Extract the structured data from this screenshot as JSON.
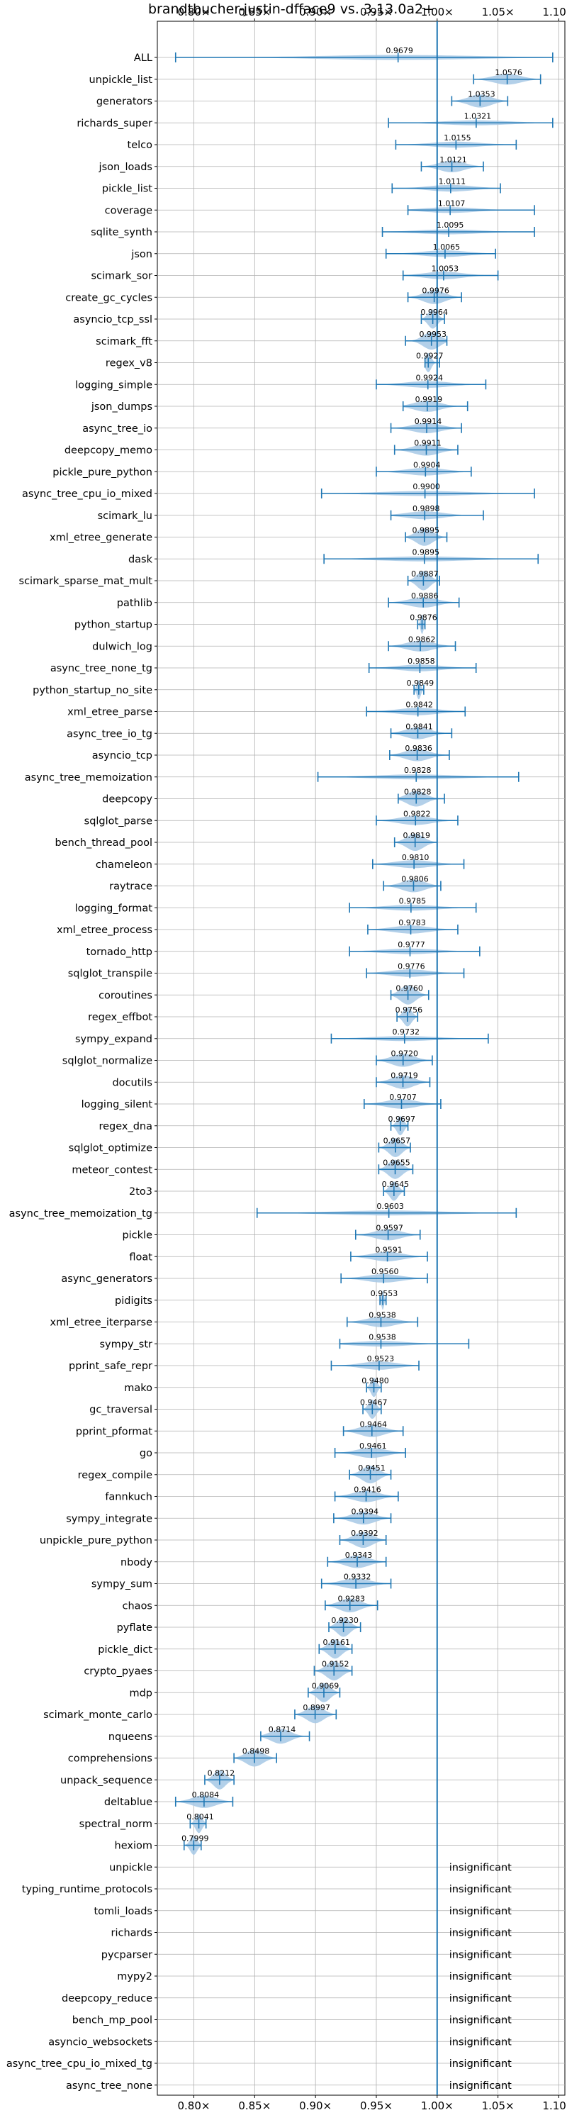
{
  "chart_data": {
    "type": "violin",
    "title": "brandtbucher-justin-dfface9 vs. 3.13.0a2+",
    "xlabel": "",
    "ylabel": "",
    "xlim": [
      0.77,
      1.105
    ],
    "xticks": [
      0.8,
      0.85,
      0.9,
      0.95,
      1.0,
      1.05,
      1.1
    ],
    "xtick_labels": [
      "0.80×",
      "0.85×",
      "0.90×",
      "0.95×",
      "1.00×",
      "1.05×",
      "1.10×"
    ],
    "reference_line": 1.0,
    "grid": true,
    "color": "#1f77b4",
    "violin_color": "#a6c8e5",
    "insignificant_label": "insignificant",
    "benchmarks": [
      {
        "name": "ALL",
        "value": 0.9679,
        "min": 0.785,
        "max": 1.095
      },
      {
        "name": "unpickle_list",
        "value": 1.0576,
        "min": 1.03,
        "max": 1.085
      },
      {
        "name": "generators",
        "value": 1.0353,
        "min": 1.012,
        "max": 1.058
      },
      {
        "name": "richards_super",
        "value": 1.0321,
        "min": 0.96,
        "max": 1.095
      },
      {
        "name": "telco",
        "value": 1.0155,
        "min": 0.966,
        "max": 1.065
      },
      {
        "name": "json_loads",
        "value": 1.0121,
        "min": 0.987,
        "max": 1.038
      },
      {
        "name": "pickle_list",
        "value": 1.0111,
        "min": 0.963,
        "max": 1.052
      },
      {
        "name": "coverage",
        "value": 1.0107,
        "min": 0.976,
        "max": 1.08
      },
      {
        "name": "sqlite_synth",
        "value": 1.0095,
        "min": 0.955,
        "max": 1.08
      },
      {
        "name": "json",
        "value": 1.0065,
        "min": 0.958,
        "max": 1.048
      },
      {
        "name": "scimark_sor",
        "value": 1.0053,
        "min": 0.972,
        "max": 1.05
      },
      {
        "name": "create_gc_cycles",
        "value": 0.9976,
        "min": 0.976,
        "max": 1.02
      },
      {
        "name": "asyncio_tcp_ssl",
        "value": 0.9964,
        "min": 0.987,
        "max": 1.006
      },
      {
        "name": "scimark_fft",
        "value": 0.9953,
        "min": 0.974,
        "max": 1.008
      },
      {
        "name": "regex_v8",
        "value": 0.9927,
        "min": 0.99,
        "max": 1.002
      },
      {
        "name": "logging_simple",
        "value": 0.9924,
        "min": 0.95,
        "max": 1.04
      },
      {
        "name": "json_dumps",
        "value": 0.9919,
        "min": 0.972,
        "max": 1.025
      },
      {
        "name": "async_tree_io",
        "value": 0.9914,
        "min": 0.962,
        "max": 1.02
      },
      {
        "name": "deepcopy_memo",
        "value": 0.9911,
        "min": 0.965,
        "max": 1.017
      },
      {
        "name": "pickle_pure_python",
        "value": 0.9904,
        "min": 0.95,
        "max": 1.028
      },
      {
        "name": "async_tree_cpu_io_mixed",
        "value": 0.99,
        "min": 0.905,
        "max": 1.08
      },
      {
        "name": "scimark_lu",
        "value": 0.9898,
        "min": 0.962,
        "max": 1.038
      },
      {
        "name": "xml_etree_generate",
        "value": 0.9895,
        "min": 0.974,
        "max": 1.008
      },
      {
        "name": "dask",
        "value": 0.9895,
        "min": 0.907,
        "max": 1.083
      },
      {
        "name": "scimark_sparse_mat_mult",
        "value": 0.9887,
        "min": 0.976,
        "max": 1.002
      },
      {
        "name": "pathlib",
        "value": 0.9886,
        "min": 0.96,
        "max": 1.018
      },
      {
        "name": "python_startup",
        "value": 0.9876,
        "min": 0.984,
        "max": 0.99
      },
      {
        "name": "dulwich_log",
        "value": 0.9862,
        "min": 0.96,
        "max": 1.015
      },
      {
        "name": "async_tree_none_tg",
        "value": 0.9858,
        "min": 0.944,
        "max": 1.032
      },
      {
        "name": "python_startup_no_site",
        "value": 0.9849,
        "min": 0.981,
        "max": 0.989
      },
      {
        "name": "xml_etree_parse",
        "value": 0.9842,
        "min": 0.942,
        "max": 1.023
      },
      {
        "name": "async_tree_io_tg",
        "value": 0.9841,
        "min": 0.962,
        "max": 1.012
      },
      {
        "name": "asyncio_tcp",
        "value": 0.9836,
        "min": 0.961,
        "max": 1.01
      },
      {
        "name": "async_tree_memoization",
        "value": 0.9828,
        "min": 0.902,
        "max": 1.067
      },
      {
        "name": "deepcopy",
        "value": 0.9828,
        "min": 0.968,
        "max": 1.006
      },
      {
        "name": "sqlglot_parse",
        "value": 0.9822,
        "min": 0.95,
        "max": 1.017
      },
      {
        "name": "bench_thread_pool",
        "value": 0.9819,
        "min": 0.965,
        "max": 1.0
      },
      {
        "name": "chameleon",
        "value": 0.981,
        "min": 0.947,
        "max": 1.022
      },
      {
        "name": "raytrace",
        "value": 0.9806,
        "min": 0.956,
        "max": 1.003
      },
      {
        "name": "logging_format",
        "value": 0.9785,
        "min": 0.928,
        "max": 1.032
      },
      {
        "name": "xml_etree_process",
        "value": 0.9783,
        "min": 0.943,
        "max": 1.017
      },
      {
        "name": "tornado_http",
        "value": 0.9777,
        "min": 0.928,
        "max": 1.035
      },
      {
        "name": "sqlglot_transpile",
        "value": 0.9776,
        "min": 0.942,
        "max": 1.022
      },
      {
        "name": "coroutines",
        "value": 0.976,
        "min": 0.962,
        "max": 0.993
      },
      {
        "name": "regex_effbot",
        "value": 0.9756,
        "min": 0.967,
        "max": 0.984
      },
      {
        "name": "sympy_expand",
        "value": 0.9732,
        "min": 0.913,
        "max": 1.042
      },
      {
        "name": "sqlglot_normalize",
        "value": 0.972,
        "min": 0.95,
        "max": 0.996
      },
      {
        "name": "docutils",
        "value": 0.9719,
        "min": 0.95,
        "max": 0.994
      },
      {
        "name": "logging_silent",
        "value": 0.9707,
        "min": 0.94,
        "max": 1.003
      },
      {
        "name": "regex_dna",
        "value": 0.9697,
        "min": 0.962,
        "max": 0.976
      },
      {
        "name": "sqlglot_optimize",
        "value": 0.9657,
        "min": 0.952,
        "max": 0.978
      },
      {
        "name": "meteor_contest",
        "value": 0.9655,
        "min": 0.952,
        "max": 0.98
      },
      {
        "name": "2to3",
        "value": 0.9645,
        "min": 0.956,
        "max": 0.973
      },
      {
        "name": "async_tree_memoization_tg",
        "value": 0.9603,
        "min": 0.852,
        "max": 1.065
      },
      {
        "name": "pickle",
        "value": 0.9597,
        "min": 0.933,
        "max": 0.986
      },
      {
        "name": "float",
        "value": 0.9591,
        "min": 0.929,
        "max": 0.992
      },
      {
        "name": "async_generators",
        "value": 0.956,
        "min": 0.921,
        "max": 0.992
      },
      {
        "name": "pidigits",
        "value": 0.9553,
        "min": 0.953,
        "max": 0.958
      },
      {
        "name": "xml_etree_iterparse",
        "value": 0.9538,
        "min": 0.926,
        "max": 0.984
      },
      {
        "name": "sympy_str",
        "value": 0.9538,
        "min": 0.92,
        "max": 1.026
      },
      {
        "name": "pprint_safe_repr",
        "value": 0.9523,
        "min": 0.913,
        "max": 0.985
      },
      {
        "name": "mako",
        "value": 0.948,
        "min": 0.942,
        "max": 0.954
      },
      {
        "name": "gc_traversal",
        "value": 0.9467,
        "min": 0.939,
        "max": 0.954
      },
      {
        "name": "pprint_pformat",
        "value": 0.9464,
        "min": 0.923,
        "max": 0.972
      },
      {
        "name": "go",
        "value": 0.9461,
        "min": 0.916,
        "max": 0.974
      },
      {
        "name": "regex_compile",
        "value": 0.9451,
        "min": 0.928,
        "max": 0.962
      },
      {
        "name": "fannkuch",
        "value": 0.9416,
        "min": 0.916,
        "max": 0.968
      },
      {
        "name": "sympy_integrate",
        "value": 0.9394,
        "min": 0.915,
        "max": 0.962
      },
      {
        "name": "unpickle_pure_python",
        "value": 0.9392,
        "min": 0.92,
        "max": 0.958
      },
      {
        "name": "nbody",
        "value": 0.9343,
        "min": 0.91,
        "max": 0.958
      },
      {
        "name": "sympy_sum",
        "value": 0.9332,
        "min": 0.905,
        "max": 0.962
      },
      {
        "name": "chaos",
        "value": 0.9283,
        "min": 0.908,
        "max": 0.951
      },
      {
        "name": "pyflate",
        "value": 0.923,
        "min": 0.911,
        "max": 0.937
      },
      {
        "name": "pickle_dict",
        "value": 0.9161,
        "min": 0.903,
        "max": 0.93
      },
      {
        "name": "crypto_pyaes",
        "value": 0.9152,
        "min": 0.899,
        "max": 0.93
      },
      {
        "name": "mdp",
        "value": 0.9069,
        "min": 0.894,
        "max": 0.92
      },
      {
        "name": "scimark_monte_carlo",
        "value": 0.8997,
        "min": 0.883,
        "max": 0.917
      },
      {
        "name": "nqueens",
        "value": 0.8714,
        "min": 0.855,
        "max": 0.895
      },
      {
        "name": "comprehensions",
        "value": 0.8498,
        "min": 0.833,
        "max": 0.868
      },
      {
        "name": "unpack_sequence",
        "value": 0.8212,
        "min": 0.809,
        "max": 0.833
      },
      {
        "name": "deltablue",
        "value": 0.8084,
        "min": 0.785,
        "max": 0.832
      },
      {
        "name": "spectral_norm",
        "value": 0.8041,
        "min": 0.797,
        "max": 0.81
      },
      {
        "name": "hexiom",
        "value": 0.7999,
        "min": 0.792,
        "max": 0.806
      },
      {
        "name": "unpickle",
        "value": null
      },
      {
        "name": "typing_runtime_protocols",
        "value": null
      },
      {
        "name": "tomli_loads",
        "value": null
      },
      {
        "name": "richards",
        "value": null
      },
      {
        "name": "pycparser",
        "value": null
      },
      {
        "name": "mypy2",
        "value": null
      },
      {
        "name": "deepcopy_reduce",
        "value": null
      },
      {
        "name": "bench_mp_pool",
        "value": null
      },
      {
        "name": "asyncio_websockets",
        "value": null
      },
      {
        "name": "async_tree_cpu_io_mixed_tg",
        "value": null
      },
      {
        "name": "async_tree_none",
        "value": null
      }
    ]
  }
}
